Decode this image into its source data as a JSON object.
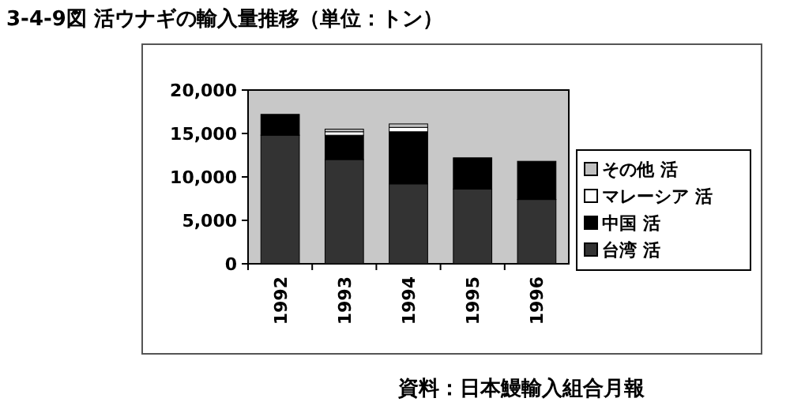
{
  "chart_data": {
    "type": "bar",
    "stacked": true,
    "title": "3-4-9図 活ウナギの輸入量推移（単位：トン）",
    "categories": [
      "1992",
      "1993",
      "1994",
      "1995",
      "1996"
    ],
    "series": [
      {
        "name": "台湾 活",
        "color": "#333333",
        "values": [
          14800,
          12000,
          9200,
          8600,
          7400
        ]
      },
      {
        "name": "中国 活",
        "color": "#000000",
        "values": [
          2400,
          2800,
          6000,
          3600,
          4400
        ]
      },
      {
        "name": "マレーシア 活",
        "color": "#ffffff",
        "values": [
          0,
          400,
          500,
          0,
          0
        ]
      },
      {
        "name": "その他 活",
        "color": "#c0c0c0",
        "values": [
          0,
          300,
          400,
          0,
          0
        ]
      }
    ],
    "ylim": [
      0,
      20000
    ],
    "yticks": [
      0,
      {
        "value": 5000,
        "label": "5,000"
      },
      {
        "value": 10000,
        "label": "10,000"
      },
      {
        "value": 15000,
        "label": "15,000"
      },
      {
        "value": 20000,
        "label": "20,000"
      }
    ],
    "legend": "right",
    "annotations": [
      "資料：日本鰻輸入組合月報"
    ]
  }
}
